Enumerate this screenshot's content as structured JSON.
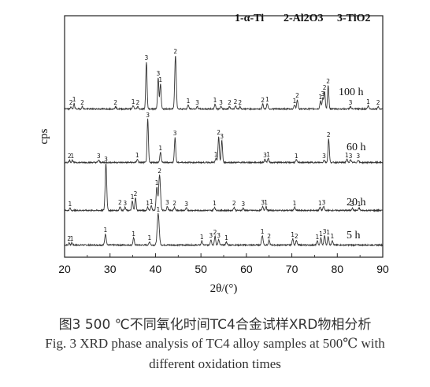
{
  "chart_data": {
    "type": "line",
    "xlabel": "2θ/(°)",
    "ylabel": "cps",
    "xlim": [
      20,
      90
    ],
    "xticks": [
      20,
      30,
      40,
      50,
      60,
      70,
      80,
      90
    ],
    "legend": {
      "position": "top-right",
      "entries": [
        {
          "id": "1",
          "phase": "α-Ti"
        },
        {
          "id": "2",
          "phase": "Al2O3"
        },
        {
          "id": "3",
          "phase": "TiO2"
        }
      ]
    },
    "series": [
      {
        "name": "5 h",
        "peaks": [
          {
            "x": 21.0,
            "h": 3,
            "w": 0.25,
            "label": "2"
          },
          {
            "x": 21.6,
            "h": 3,
            "w": 0.25,
            "label": "1"
          },
          {
            "x": 29.0,
            "h": 14,
            "w": 0.35,
            "label": "1"
          },
          {
            "x": 35.2,
            "h": 9,
            "w": 0.3,
            "label": "1"
          },
          {
            "x": 38.7,
            "h": 4,
            "w": 0.3,
            "label": "1"
          },
          {
            "x": 40.6,
            "h": 40,
            "w": 0.45,
            "label": "1"
          },
          {
            "x": 50.2,
            "h": 5,
            "w": 0.3,
            "label": "1"
          },
          {
            "x": 52.2,
            "h": 7,
            "w": 0.3,
            "label": "3"
          },
          {
            "x": 53.1,
            "h": 11,
            "w": 0.3,
            "label": "2"
          },
          {
            "x": 53.9,
            "h": 7,
            "w": 0.3,
            "label": "3"
          },
          {
            "x": 55.6,
            "h": 4,
            "w": 0.3,
            "label": "1"
          },
          {
            "x": 63.5,
            "h": 12,
            "w": 0.35,
            "label": "1"
          },
          {
            "x": 65.0,
            "h": 6,
            "w": 0.3,
            "label": "2"
          },
          {
            "x": 70.2,
            "h": 8,
            "w": 0.3,
            "label": "1"
          },
          {
            "x": 71.0,
            "h": 6,
            "w": 0.3,
            "label": "2"
          },
          {
            "x": 75.6,
            "h": 5,
            "w": 0.3,
            "label": "1"
          },
          {
            "x": 76.4,
            "h": 9,
            "w": 0.3,
            "label": "1"
          },
          {
            "x": 77.2,
            "h": 12,
            "w": 0.3,
            "label": "3"
          },
          {
            "x": 78.0,
            "h": 11,
            "w": 0.3,
            "label": "1"
          },
          {
            "x": 78.9,
            "h": 6,
            "w": 0.3,
            "label": "1"
          }
        ]
      },
      {
        "name": "20 h",
        "peaks": [
          {
            "x": 21.2,
            "h": 3,
            "w": 0.25,
            "label": "1"
          },
          {
            "x": 29.1,
            "h": 60,
            "w": 0.35,
            "label": "3"
          },
          {
            "x": 32.2,
            "h": 5,
            "w": 0.3,
            "label": "2"
          },
          {
            "x": 33.3,
            "h": 4,
            "w": 0.3,
            "label": "3"
          },
          {
            "x": 34.9,
            "h": 12,
            "w": 0.3,
            "label": "1"
          },
          {
            "x": 35.6,
            "h": 16,
            "w": 0.3,
            "label": "2"
          },
          {
            "x": 38.3,
            "h": 4,
            "w": 0.3,
            "label": "1"
          },
          {
            "x": 39.1,
            "h": 6,
            "w": 0.3,
            "label": "1"
          },
          {
            "x": 40.3,
            "h": 30,
            "w": 0.35,
            "label": "1"
          },
          {
            "x": 40.9,
            "h": 45,
            "w": 0.4,
            "label": "2"
          },
          {
            "x": 42.6,
            "h": 5,
            "w": 0.3,
            "label": "3"
          },
          {
            "x": 44.2,
            "h": 4,
            "w": 0.3,
            "label": "2"
          },
          {
            "x": 46.8,
            "h": 3,
            "w": 0.3,
            "label": "3"
          },
          {
            "x": 53.0,
            "h": 4,
            "w": 0.3,
            "label": "1"
          },
          {
            "x": 57.3,
            "h": 4,
            "w": 0.3,
            "label": "2"
          },
          {
            "x": 59.3,
            "h": 3,
            "w": 0.3,
            "label": "3"
          },
          {
            "x": 63.6,
            "h": 5,
            "w": 0.3,
            "label": "3"
          },
          {
            "x": 64.3,
            "h": 5,
            "w": 0.3,
            "label": "1"
          },
          {
            "x": 70.6,
            "h": 4,
            "w": 0.3,
            "label": "1"
          },
          {
            "x": 76.2,
            "h": 4,
            "w": 0.3,
            "label": "1"
          },
          {
            "x": 77.0,
            "h": 5,
            "w": 0.3,
            "label": "3"
          },
          {
            "x": 83.3,
            "h": 3,
            "w": 0.3,
            "label": "3"
          },
          {
            "x": 84.8,
            "h": 3,
            "w": 0.3,
            "label": "1"
          }
        ]
      },
      {
        "name": "60 h",
        "peaks": [
          {
            "x": 21.1,
            "h": 3,
            "w": 0.25,
            "label": "2"
          },
          {
            "x": 21.7,
            "h": 3,
            "w": 0.25,
            "label": "1"
          },
          {
            "x": 27.5,
            "h": 3,
            "w": 0.3,
            "label": "3"
          },
          {
            "x": 36.0,
            "h": 4,
            "w": 0.3,
            "label": "1"
          },
          {
            "x": 38.3,
            "h": 55,
            "w": 0.3,
            "label": "3"
          },
          {
            "x": 41.1,
            "h": 13,
            "w": 0.3,
            "label": "1"
          },
          {
            "x": 44.3,
            "h": 32,
            "w": 0.3,
            "label": "3"
          },
          {
            "x": 53.3,
            "h": 5,
            "w": 0.3,
            "label": "1"
          },
          {
            "x": 53.9,
            "h": 33,
            "w": 0.3,
            "label": "2"
          },
          {
            "x": 54.6,
            "h": 28,
            "w": 0.3,
            "label": "3"
          },
          {
            "x": 64.1,
            "h": 4,
            "w": 0.3,
            "label": "3"
          },
          {
            "x": 64.8,
            "h": 5,
            "w": 0.3,
            "label": "1"
          },
          {
            "x": 71.0,
            "h": 3,
            "w": 0.3,
            "label": "1"
          },
          {
            "x": 77.1,
            "h": 3,
            "w": 0.3,
            "label": "3"
          },
          {
            "x": 78.1,
            "h": 30,
            "w": 0.3,
            "label": "2"
          },
          {
            "x": 82.1,
            "h": 4,
            "w": 0.3,
            "label": "1"
          },
          {
            "x": 82.9,
            "h": 3,
            "w": 0.3,
            "label": "3"
          },
          {
            "x": 84.6,
            "h": 3,
            "w": 0.3,
            "label": "3"
          }
        ]
      },
      {
        "name": "100 h",
        "peaks": [
          {
            "x": 21.4,
            "h": 3,
            "w": 0.25,
            "label": "2"
          },
          {
            "x": 22.1,
            "h": 7,
            "w": 0.25,
            "label": "1"
          },
          {
            "x": 23.9,
            "h": 3,
            "w": 0.3,
            "label": "2"
          },
          {
            "x": 31.2,
            "h": 3,
            "w": 0.3,
            "label": "2"
          },
          {
            "x": 35.1,
            "h": 4,
            "w": 0.3,
            "label": "1"
          },
          {
            "x": 36.1,
            "h": 3,
            "w": 0.3,
            "label": "2"
          },
          {
            "x": 38.0,
            "h": 60,
            "w": 0.3,
            "label": "3"
          },
          {
            "x": 40.6,
            "h": 40,
            "w": 0.3,
            "label": "3"
          },
          {
            "x": 41.1,
            "h": 32,
            "w": 0.3,
            "label": "1"
          },
          {
            "x": 44.4,
            "h": 68,
            "w": 0.35,
            "label": "2"
          },
          {
            "x": 47.2,
            "h": 5,
            "w": 0.3,
            "label": "1"
          },
          {
            "x": 49.2,
            "h": 3,
            "w": 0.3,
            "label": "3"
          },
          {
            "x": 53.1,
            "h": 6,
            "w": 0.3,
            "label": "1"
          },
          {
            "x": 54.4,
            "h": 3,
            "w": 0.3,
            "label": "3"
          },
          {
            "x": 56.3,
            "h": 3,
            "w": 0.3,
            "label": "2"
          },
          {
            "x": 57.6,
            "h": 4,
            "w": 0.3,
            "label": "2"
          },
          {
            "x": 58.6,
            "h": 3,
            "w": 0.3,
            "label": "2"
          },
          {
            "x": 63.6,
            "h": 6,
            "w": 0.3,
            "label": "2"
          },
          {
            "x": 64.6,
            "h": 7,
            "w": 0.3,
            "label": "1"
          },
          {
            "x": 70.6,
            "h": 5,
            "w": 0.3,
            "label": "1"
          },
          {
            "x": 71.2,
            "h": 12,
            "w": 0.3,
            "label": "2"
          },
          {
            "x": 76.3,
            "h": 10,
            "w": 0.3,
            "label": "1"
          },
          {
            "x": 76.8,
            "h": 14,
            "w": 0.3,
            "label": "3"
          },
          {
            "x": 77.2,
            "h": 22,
            "w": 0.3,
            "label": "2"
          },
          {
            "x": 78.0,
            "h": 30,
            "w": 0.3,
            "label": "2"
          },
          {
            "x": 82.9,
            "h": 3,
            "w": 0.3,
            "label": "3"
          },
          {
            "x": 86.8,
            "h": 4,
            "w": 0.3,
            "label": "1"
          },
          {
            "x": 89.0,
            "h": 3,
            "w": 0.3,
            "label": "2"
          }
        ]
      }
    ]
  },
  "caption": {
    "zh": "图3    500 ℃不同氧化时间TC4合金试样XRD物相分析",
    "en_line1": "Fig. 3 XRD phase analysis of TC4 alloy samples at 500℃ with",
    "en_line2": "different oxidation times"
  },
  "colors": {
    "axis": "#222222",
    "trace": "#333333",
    "text": "#111111"
  }
}
